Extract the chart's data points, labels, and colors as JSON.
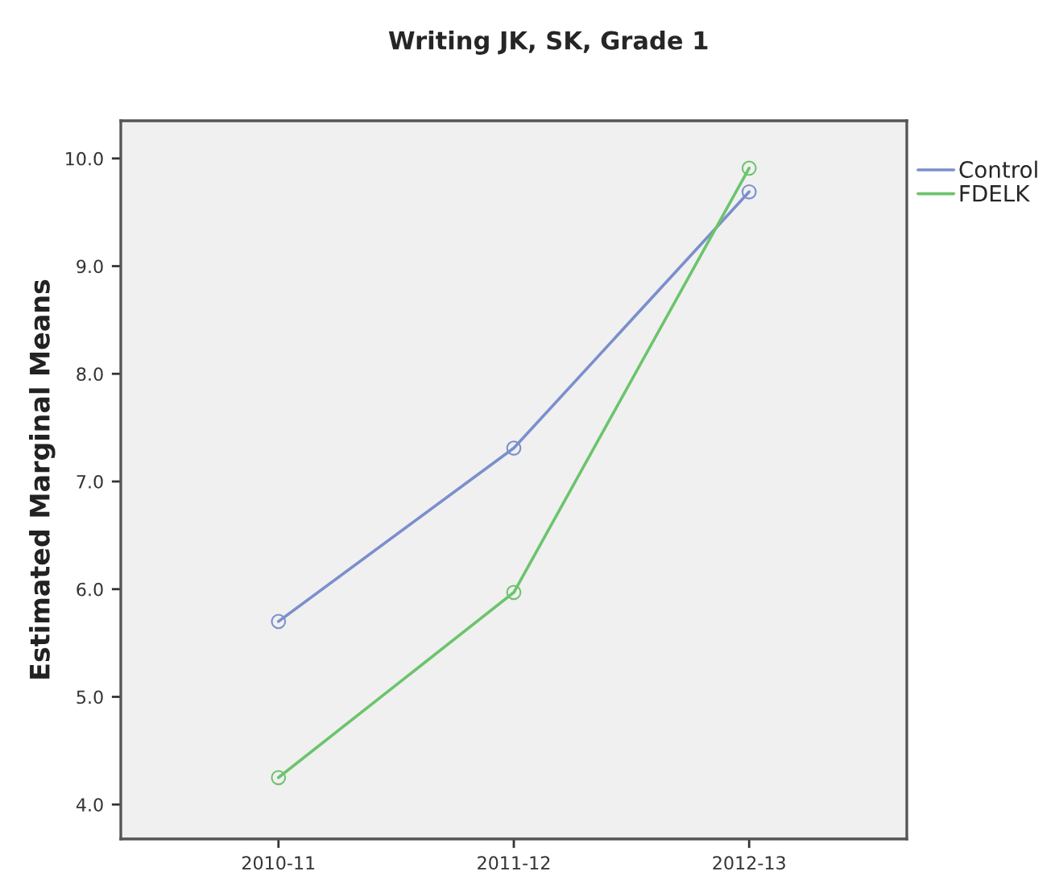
{
  "chart_data": {
    "type": "line",
    "title": "Writing JK, SK, Grade 1",
    "ylabel": "Estimated Marginal Means",
    "categories": [
      "2010-11",
      "2011-12",
      "2012-13"
    ],
    "series": [
      {
        "name": "Control",
        "color": "#7b8fcc",
        "values": [
          5.7,
          7.31,
          9.69
        ]
      },
      {
        "name": "FDELK",
        "color": "#6cc46c",
        "values": [
          4.25,
          5.97,
          9.91
        ]
      }
    ],
    "ylim": [
      3.68,
      10.35
    ],
    "yticks": [
      {
        "value": 4,
        "label": "4.0"
      },
      {
        "value": 5,
        "label": "5.0"
      },
      {
        "value": 6,
        "label": "6.0"
      },
      {
        "value": 7,
        "label": "7.0"
      },
      {
        "value": 8,
        "label": "8.0"
      },
      {
        "value": 9,
        "label": "9.0"
      },
      {
        "value": 10,
        "label": "10.0"
      }
    ],
    "grid": false,
    "legend": "top right",
    "marker": "circle",
    "line_style": "solid"
  }
}
